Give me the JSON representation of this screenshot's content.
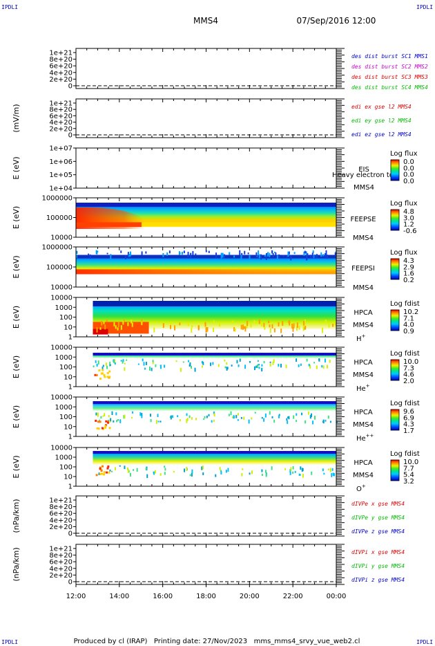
{
  "header": {
    "corner_left": "IPDLI",
    "corner_right": "IPDLI",
    "spacecraft": "MMS4",
    "datetime": "07/Sep/2016 12:00"
  },
  "footer": {
    "corner_left": "IPDLI",
    "corner_right": "IPDLI",
    "text": "Produced by cl (IRAP)   Printing date: 27/Nov/2023   mms_mms4_srvy_vue_web2.cl"
  },
  "colors": {
    "mms1": "#0000cc",
    "mms2": "#cc00cc",
    "mms3": "#dd0000",
    "mms4": "#00bb00",
    "x": "#dd0000",
    "y": "#00bb00",
    "z": "#0000cc"
  },
  "chart_data": {
    "type": "heatmap",
    "x_axis": {
      "range": [
        "12:00",
        "00:00"
      ],
      "tick_labels": [
        "12:00",
        "14:00",
        "16:00",
        "18:00",
        "20:00",
        "22:00",
        "00:00"
      ]
    },
    "panels": [
      {
        "kind": "line",
        "ylabel": "",
        "ytick_labels": [
          "1e+21",
          "8e+20",
          "6e+20",
          "4e+20",
          "2e+20",
          "0"
        ],
        "legend": [
          {
            "text": "des dist burst SC1 MMS1",
            "color": "mms1"
          },
          {
            "text": "des dist burst SC2 MMS2",
            "color": "mms2"
          },
          {
            "text": "des dist burst SC3 MMS3",
            "color": "mms3"
          },
          {
            "text": "des dist burst SC4 MMS4",
            "color": "mms4"
          }
        ]
      },
      {
        "kind": "line",
        "ylabel": "(mV/m)",
        "ytick_labels": [
          "1e+21",
          "8e+20",
          "6e+20",
          "4e+20",
          "2e+20",
          "0"
        ],
        "legend": [
          {
            "text": "edi ex gse l2 MMS4",
            "color": "x"
          },
          {
            "text": "edi ey gse l2 MMS4",
            "color": "y"
          },
          {
            "text": "edi ez gse l2 MMS4",
            "color": "z"
          }
        ]
      },
      {
        "kind": "spectrogram",
        "name": "EIS",
        "ylabel": "E (eV)",
        "ytick_labels": [
          "1e+07",
          "1e+06",
          "1e+05",
          "1e+04"
        ],
        "side_labels": [
          "EIS",
          "MMS4"
        ],
        "overlap_label": "Heavy electron to",
        "cbar_title": "Log flux",
        "cbar_ticks": [
          "0.0",
          "0.0",
          "0.0",
          "0.0"
        ],
        "fill_start": null
      },
      {
        "kind": "spectrogram",
        "name": "FEEPSE",
        "ylabel": "E (eV)",
        "ytick_labels": [
          "1000000",
          "100000",
          "10000"
        ],
        "side_labels": [
          "FEEPSE",
          "MMS4"
        ],
        "cbar_title": "Log flux",
        "cbar_ticks": [
          "4.8",
          "3.0",
          "1.2",
          "-0.6"
        ],
        "fill_start": 0.0
      },
      {
        "kind": "spectrogram",
        "name": "FEEPSI",
        "ylabel": "E (eV)",
        "ytick_labels": [
          "1000000",
          "100000",
          "10000"
        ],
        "side_labels": [
          "FEEPSI",
          "MMS4"
        ],
        "cbar_title": "Log flux",
        "cbar_ticks": [
          "4.3",
          "2.9",
          "1.6",
          "0.2"
        ],
        "fill_start": 0.0
      },
      {
        "kind": "spectrogram",
        "name": "HPCA H+",
        "ylabel": "E (eV)",
        "ytick_labels": [
          "10000",
          "1000",
          "100",
          "10",
          "1"
        ],
        "side_labels": [
          "HPCA",
          "MMS4",
          "H"
        ],
        "species_sup": "+",
        "cbar_title": "Log fdist",
        "cbar_ticks": [
          "10.2",
          "7.1",
          "4.0",
          "0.9"
        ],
        "fill_start": 0.065
      },
      {
        "kind": "spectrogram",
        "name": "HPCA He+",
        "ylabel": "E (eV)",
        "ytick_labels": [
          "10000",
          "1000",
          "100",
          "10",
          "1"
        ],
        "side_labels": [
          "HPCA",
          "MMS4",
          "He"
        ],
        "species_sup": "+",
        "cbar_title": "Log fdist",
        "cbar_ticks": [
          "10.0",
          "7.3",
          "4.6",
          "2.0"
        ],
        "fill_start": 0.065
      },
      {
        "kind": "spectrogram",
        "name": "HPCA He++",
        "ylabel": "E (eV)",
        "ytick_labels": [
          "10000",
          "1000",
          "100",
          "10",
          "1"
        ],
        "side_labels": [
          "HPCA",
          "MMS4",
          "He"
        ],
        "species_sup": "++",
        "cbar_title": "Log fdist",
        "cbar_ticks": [
          "9.6",
          "6.9",
          "4.3",
          "1.7"
        ],
        "fill_start": 0.065
      },
      {
        "kind": "spectrogram",
        "name": "HPCA O+",
        "ylabel": "E (eV)",
        "ytick_labels": [
          "10000",
          "1000",
          "100",
          "10",
          "1"
        ],
        "side_labels": [
          "HPCA",
          "MMS4",
          "O"
        ],
        "species_sup": "+",
        "cbar_title": "Log fdist",
        "cbar_ticks": [
          "10.0",
          "7.7",
          "5.4",
          "3.2"
        ],
        "fill_start": 0.065
      },
      {
        "kind": "line",
        "ylabel": "(nPa/km)",
        "ytick_labels": [
          "1e+21",
          "8e+20",
          "6e+20",
          "4e+20",
          "2e+20",
          "0"
        ],
        "legend": [
          {
            "text": "dIVPe x gse MMS4",
            "color": "x"
          },
          {
            "text": "dIVPe y gse MMS4",
            "color": "y"
          },
          {
            "text": "dIVPe z gse MMS4",
            "color": "z"
          }
        ]
      },
      {
        "kind": "line",
        "ylabel": "(nPa/km)",
        "ytick_labels": [
          "1e+21",
          "8e+20",
          "6e+20",
          "4e+20",
          "2e+20",
          "0"
        ],
        "legend": [
          {
            "text": "dIVPi x gse MMS4",
            "color": "x"
          },
          {
            "text": "dIVPi y gse MMS4",
            "color": "y"
          },
          {
            "text": "dIVPi z gse MMS4",
            "color": "z"
          }
        ]
      }
    ]
  }
}
